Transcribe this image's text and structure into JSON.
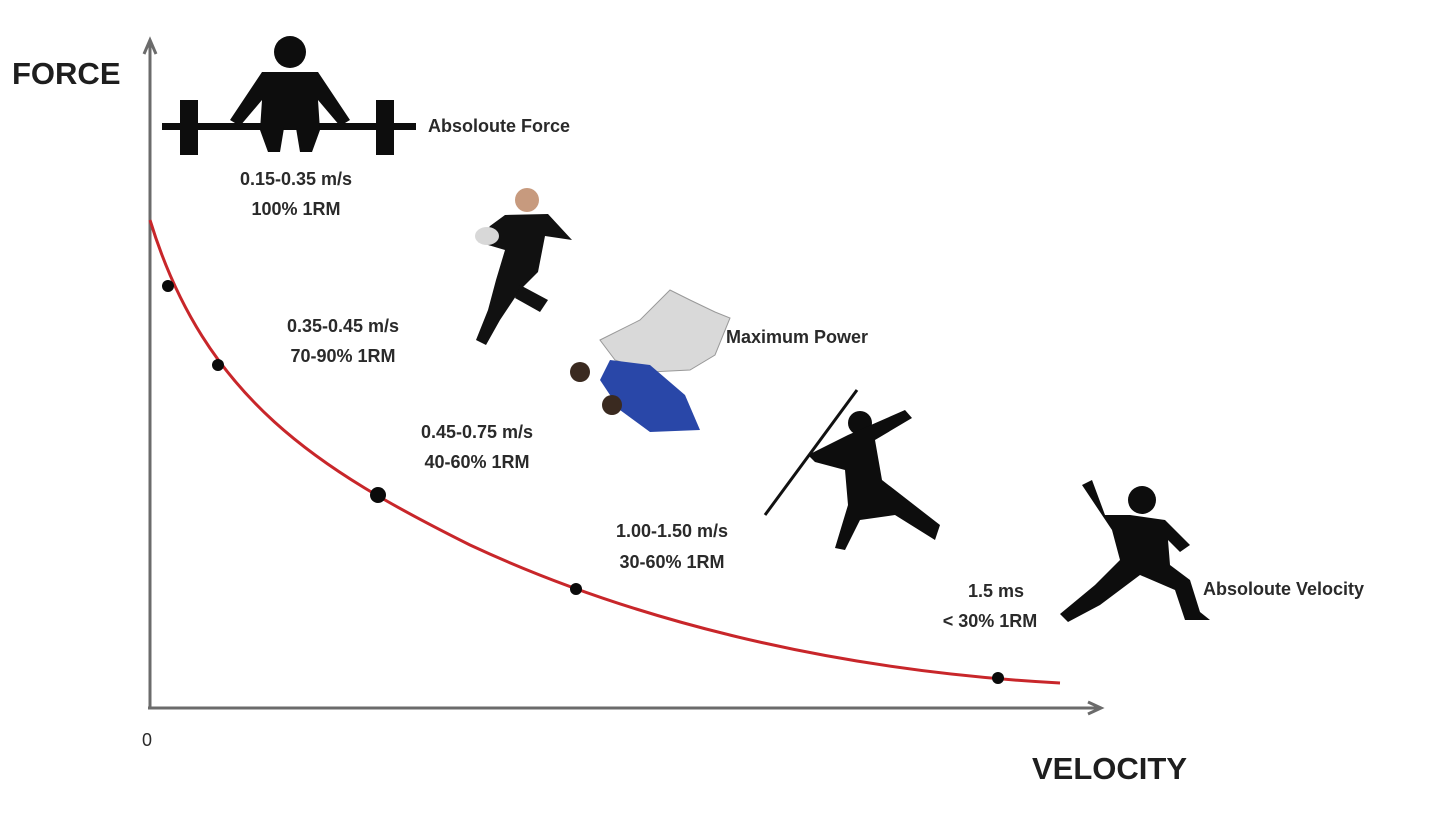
{
  "axes": {
    "y_label": "FORCE",
    "x_label": "VELOCITY",
    "origin": "0"
  },
  "zones": [
    {
      "velocity": "0.15-0.35 m/s",
      "load": "100%  1RM"
    },
    {
      "velocity": "0.35-0.45 m/s",
      "load": "70-90% 1RM"
    },
    {
      "velocity": "0.45-0.75 m/s",
      "load": "40-60% 1RM"
    },
    {
      "velocity": "1.00-1.50 m/s",
      "load": "30-60% 1RM"
    },
    {
      "velocity": "1.5 ms",
      "load": "< 30% 1RM"
    }
  ],
  "annotations": {
    "force": "Absoloute Force",
    "power": "Maximum Power",
    "velocity": "Absoloute Velocity"
  }
}
